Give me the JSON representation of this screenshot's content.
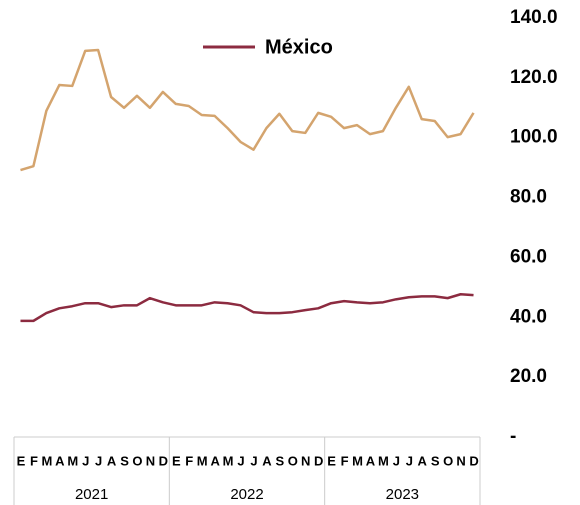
{
  "chart_data": {
    "type": "line",
    "categories": [
      "E",
      "F",
      "M",
      "A",
      "M",
      "J",
      "J",
      "A",
      "S",
      "O",
      "N",
      "D",
      "E",
      "F",
      "M",
      "A",
      "M",
      "J",
      "J",
      "A",
      "S",
      "O",
      "N",
      "D",
      "E",
      "F",
      "M",
      "A",
      "M",
      "J",
      "J",
      "A",
      "S",
      "O",
      "N",
      "D"
    ],
    "years": [
      "2021",
      "2022",
      "2023"
    ],
    "series": [
      {
        "color": "#d4a46e",
        "values": [
          89.2,
          90.5,
          109,
          117.6,
          117.3,
          129,
          129.3,
          113.6,
          110,
          114,
          110,
          115.3,
          111.3,
          110.6,
          107.6,
          107.3,
          103.2,
          98.6,
          96,
          103.2,
          108,
          102.2,
          101.6,
          108.3,
          107,
          103.2,
          104.2,
          101.2,
          102.2,
          110,
          117,
          106.2,
          105.6,
          100.2,
          101.2,
          108.3
        ]
      },
      {
        "name": "México",
        "color": "#8c2b40",
        "values": [
          38.8,
          38.8,
          41.4,
          43,
          43.7,
          44.7,
          44.7,
          43.4,
          44,
          44,
          46.4,
          45,
          44,
          44,
          44,
          45,
          44.7,
          44,
          41.7,
          41.4,
          41.4,
          41.7,
          42.4,
          43,
          44.7,
          45.4,
          45,
          44.7,
          45,
          46,
          46.7,
          47,
          47,
          46.4,
          47.7,
          47.4
        ]
      }
    ],
    "ylim": [
      0,
      140
    ],
    "yticks": [
      {
        "value": 0,
        "label": "-"
      },
      {
        "value": 20,
        "label": "20.0"
      },
      {
        "value": 40,
        "label": "40.0"
      },
      {
        "value": 60,
        "label": "60.0"
      },
      {
        "value": 80,
        "label": "80.0"
      },
      {
        "value": 100,
        "label": "100.0"
      },
      {
        "value": 120,
        "label": "120.0"
      },
      {
        "value": 140,
        "label": "140.0"
      }
    ],
    "legend": "top"
  }
}
